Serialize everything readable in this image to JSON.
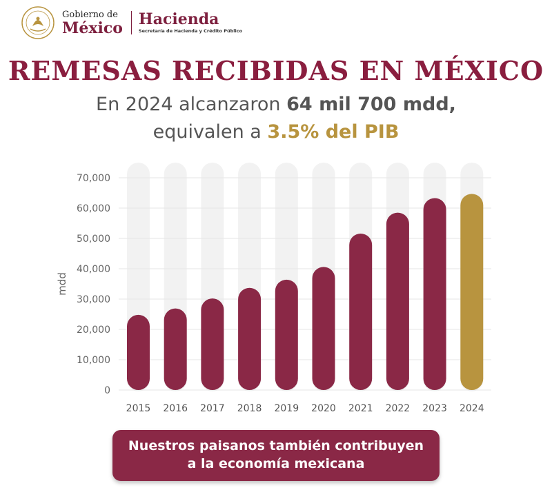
{
  "header": {
    "seal_text": "ESTADOS UNIDOS MEXICANOS",
    "gob_top": "Gobierno de",
    "gob_main": "México",
    "hacienda_main": "Hacienda",
    "hacienda_sub": "Secretaría de Hacienda y Crédito Público"
  },
  "title": "REMESAS RECIBIDAS EN MÉXICO",
  "subtitle": {
    "line1_prefix": "En 2024 alcanzaron ",
    "line1_strong": "64 mil 700 mdd",
    "line1_suffix": ",",
    "line2_prefix": "equivalen a ",
    "line2_highlight": "3.5% del PIB"
  },
  "colors": {
    "bar": "#8a2846",
    "highlight": "#b8943f",
    "track": "#f2f2f2",
    "title": "#8a1e3f"
  },
  "chart_data": {
    "type": "bar",
    "categories": [
      "2015",
      "2016",
      "2017",
      "2018",
      "2019",
      "2020",
      "2021",
      "2022",
      "2023",
      "2024"
    ],
    "values": [
      24800,
      26900,
      30200,
      33700,
      36400,
      40600,
      51600,
      58500,
      63300,
      64700
    ],
    "highlight_index": 9,
    "title": "REMESAS RECIBIDAS EN MÉXICO",
    "xlabel": "",
    "ylabel": "mdd",
    "ylim": [
      0,
      70000
    ],
    "yticks": [
      0,
      10000,
      20000,
      30000,
      40000,
      50000,
      60000,
      70000
    ],
    "ytick_labels": [
      "0",
      "10,000",
      "20,000",
      "30,000",
      "40,000",
      "50,000",
      "60,000",
      "70,000"
    ],
    "grid": true,
    "legend": "none"
  },
  "banner": {
    "line1": "Nuestros paisanos también contribuyen",
    "line2": "a la economía mexicana"
  }
}
